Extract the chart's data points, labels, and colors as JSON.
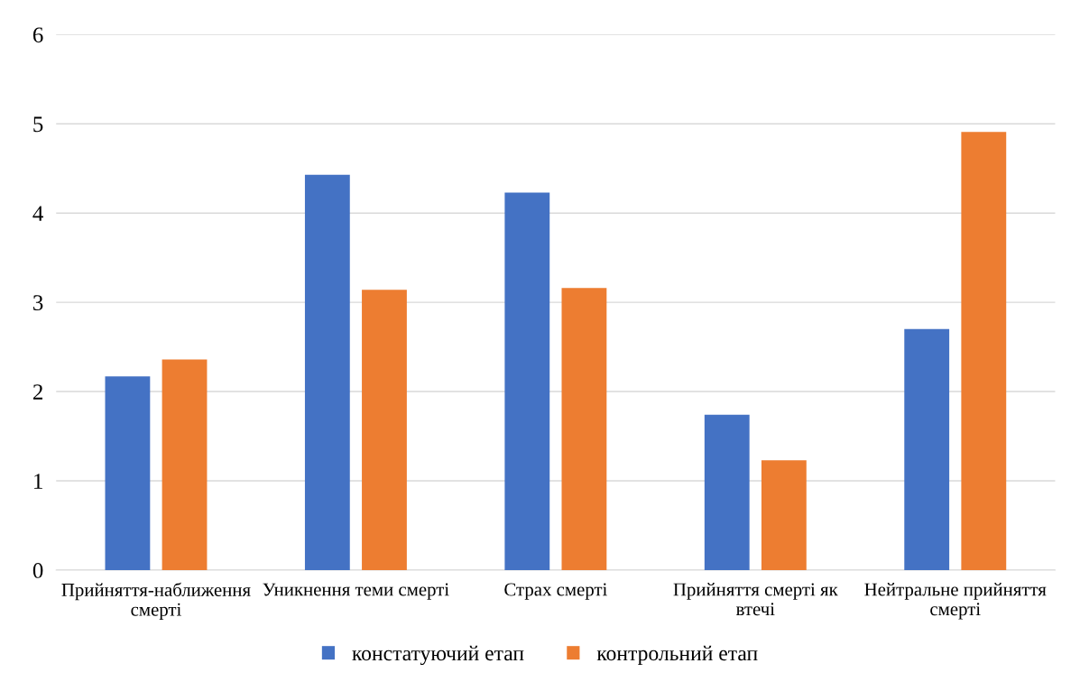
{
  "chart_data": {
    "type": "bar",
    "categories": [
      "Прийняття-наближення\nсмерті",
      "Уникнення теми смерті",
      "Страх смерті",
      "Прийняття смерті як\nвтечі",
      "Нейтральне прийняття\nсмерті"
    ],
    "series": [
      {
        "name": "констатуючий етап",
        "color": "#4472c4",
        "values": [
          2.17,
          4.43,
          4.23,
          1.74,
          2.7
        ]
      },
      {
        "name": "контрольний етап",
        "color": "#ed7d31",
        "values": [
          2.36,
          3.14,
          3.16,
          1.23,
          4.91
        ]
      }
    ],
    "ylim": [
      0,
      6
    ],
    "yticks": [
      0,
      1,
      2,
      3,
      4,
      5,
      6
    ],
    "grid": "y",
    "legend": "bottom"
  }
}
